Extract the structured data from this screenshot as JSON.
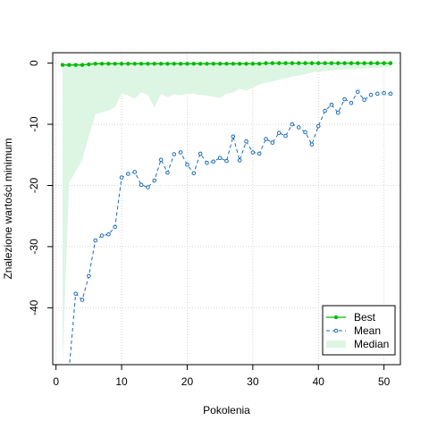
{
  "chart_data": {
    "type": "line",
    "title": "",
    "xlabel": "Pokolenia",
    "ylabel": "Znalezione wartości minimum",
    "xlim": [
      -0.5,
      52.5
    ],
    "ylim": [
      -49.3,
      1.7
    ],
    "xticks": [
      0,
      10,
      20,
      30,
      40,
      50
    ],
    "yticks": [
      0,
      -10,
      -20,
      -30,
      -40
    ],
    "grid": true,
    "legend_position": "bottom-right",
    "x": [
      1,
      2,
      3,
      4,
      5,
      6,
      7,
      8,
      9,
      10,
      11,
      12,
      13,
      14,
      15,
      16,
      17,
      18,
      19,
      20,
      21,
      22,
      23,
      24,
      25,
      26,
      27,
      28,
      29,
      30,
      31,
      32,
      33,
      34,
      35,
      36,
      37,
      38,
      39,
      40,
      41,
      42,
      43,
      44,
      45,
      46,
      47,
      48,
      49,
      50,
      51
    ],
    "series": [
      {
        "name": "Best",
        "style": "solid-line-filled-dots",
        "color": "#00bb00",
        "values": [
          -0.3,
          -0.3,
          -0.3,
          -0.3,
          -0.2,
          -0.1,
          -0.1,
          -0.1,
          -0.1,
          -0.1,
          -0.1,
          -0.1,
          -0.1,
          -0.1,
          -0.1,
          -0.1,
          -0.1,
          -0.1,
          -0.1,
          -0.1,
          -0.1,
          -0.1,
          -0.1,
          -0.1,
          -0.1,
          -0.1,
          -0.1,
          -0.1,
          -0.1,
          -0.1,
          -0.1,
          0,
          0,
          0,
          0,
          0,
          0,
          0,
          0,
          0,
          0,
          0,
          0,
          0,
          0,
          0,
          0,
          0,
          0,
          0,
          0
        ]
      },
      {
        "name": "Mean",
        "style": "dashed-line-open-dots",
        "color": "#1a6bb8",
        "values": [
          -55,
          -50,
          -37.7,
          -38.7,
          -34.8,
          -29.0,
          -28.2,
          -28.0,
          -26.8,
          -18.7,
          -18.1,
          -17.8,
          -19.9,
          -20.3,
          -19.2,
          -15.8,
          -17.9,
          -14.9,
          -14.6,
          -16.6,
          -18.0,
          -14.8,
          -16.3,
          -16.1,
          -15.5,
          -16.0,
          -12.0,
          -15.9,
          -12.8,
          -14.6,
          -14.8,
          -12.4,
          -13.0,
          -11.4,
          -11.9,
          -10.0,
          -10.5,
          -11.3,
          -13.3,
          -10.3,
          -7.8,
          -6.8,
          -8.1,
          -5.9,
          -6.5,
          -4.7,
          -6.0,
          -5.2,
          -5.0,
          -4.9,
          -5.0
        ]
      },
      {
        "name": "Median",
        "style": "area",
        "color": "#ddf5e3",
        "values": [
          -49.3,
          -19.5,
          -17.7,
          -15.8,
          -12.0,
          -8.4,
          -8.0,
          -7.8,
          -7.2,
          -5.0,
          -5.3,
          -5.8,
          -4.8,
          -5.2,
          -7.3,
          -5.0,
          -5.6,
          -5.1,
          -5.3,
          -5.0,
          -5.0,
          -5.2,
          -5.3,
          -5.5,
          -5.7,
          -5.0,
          -4.8,
          -4.2,
          -4.5,
          -4.0,
          -3.5,
          -3.2,
          -3.0,
          -2.7,
          -2.5,
          -2.2,
          -2.0,
          -1.8,
          -1.5,
          -1.4,
          -1.3,
          -1.2,
          -1.1,
          -1.0,
          -1.0,
          -0.9,
          -0.9,
          -0.8,
          -0.8,
          -0.7,
          -0.7
        ]
      }
    ]
  }
}
